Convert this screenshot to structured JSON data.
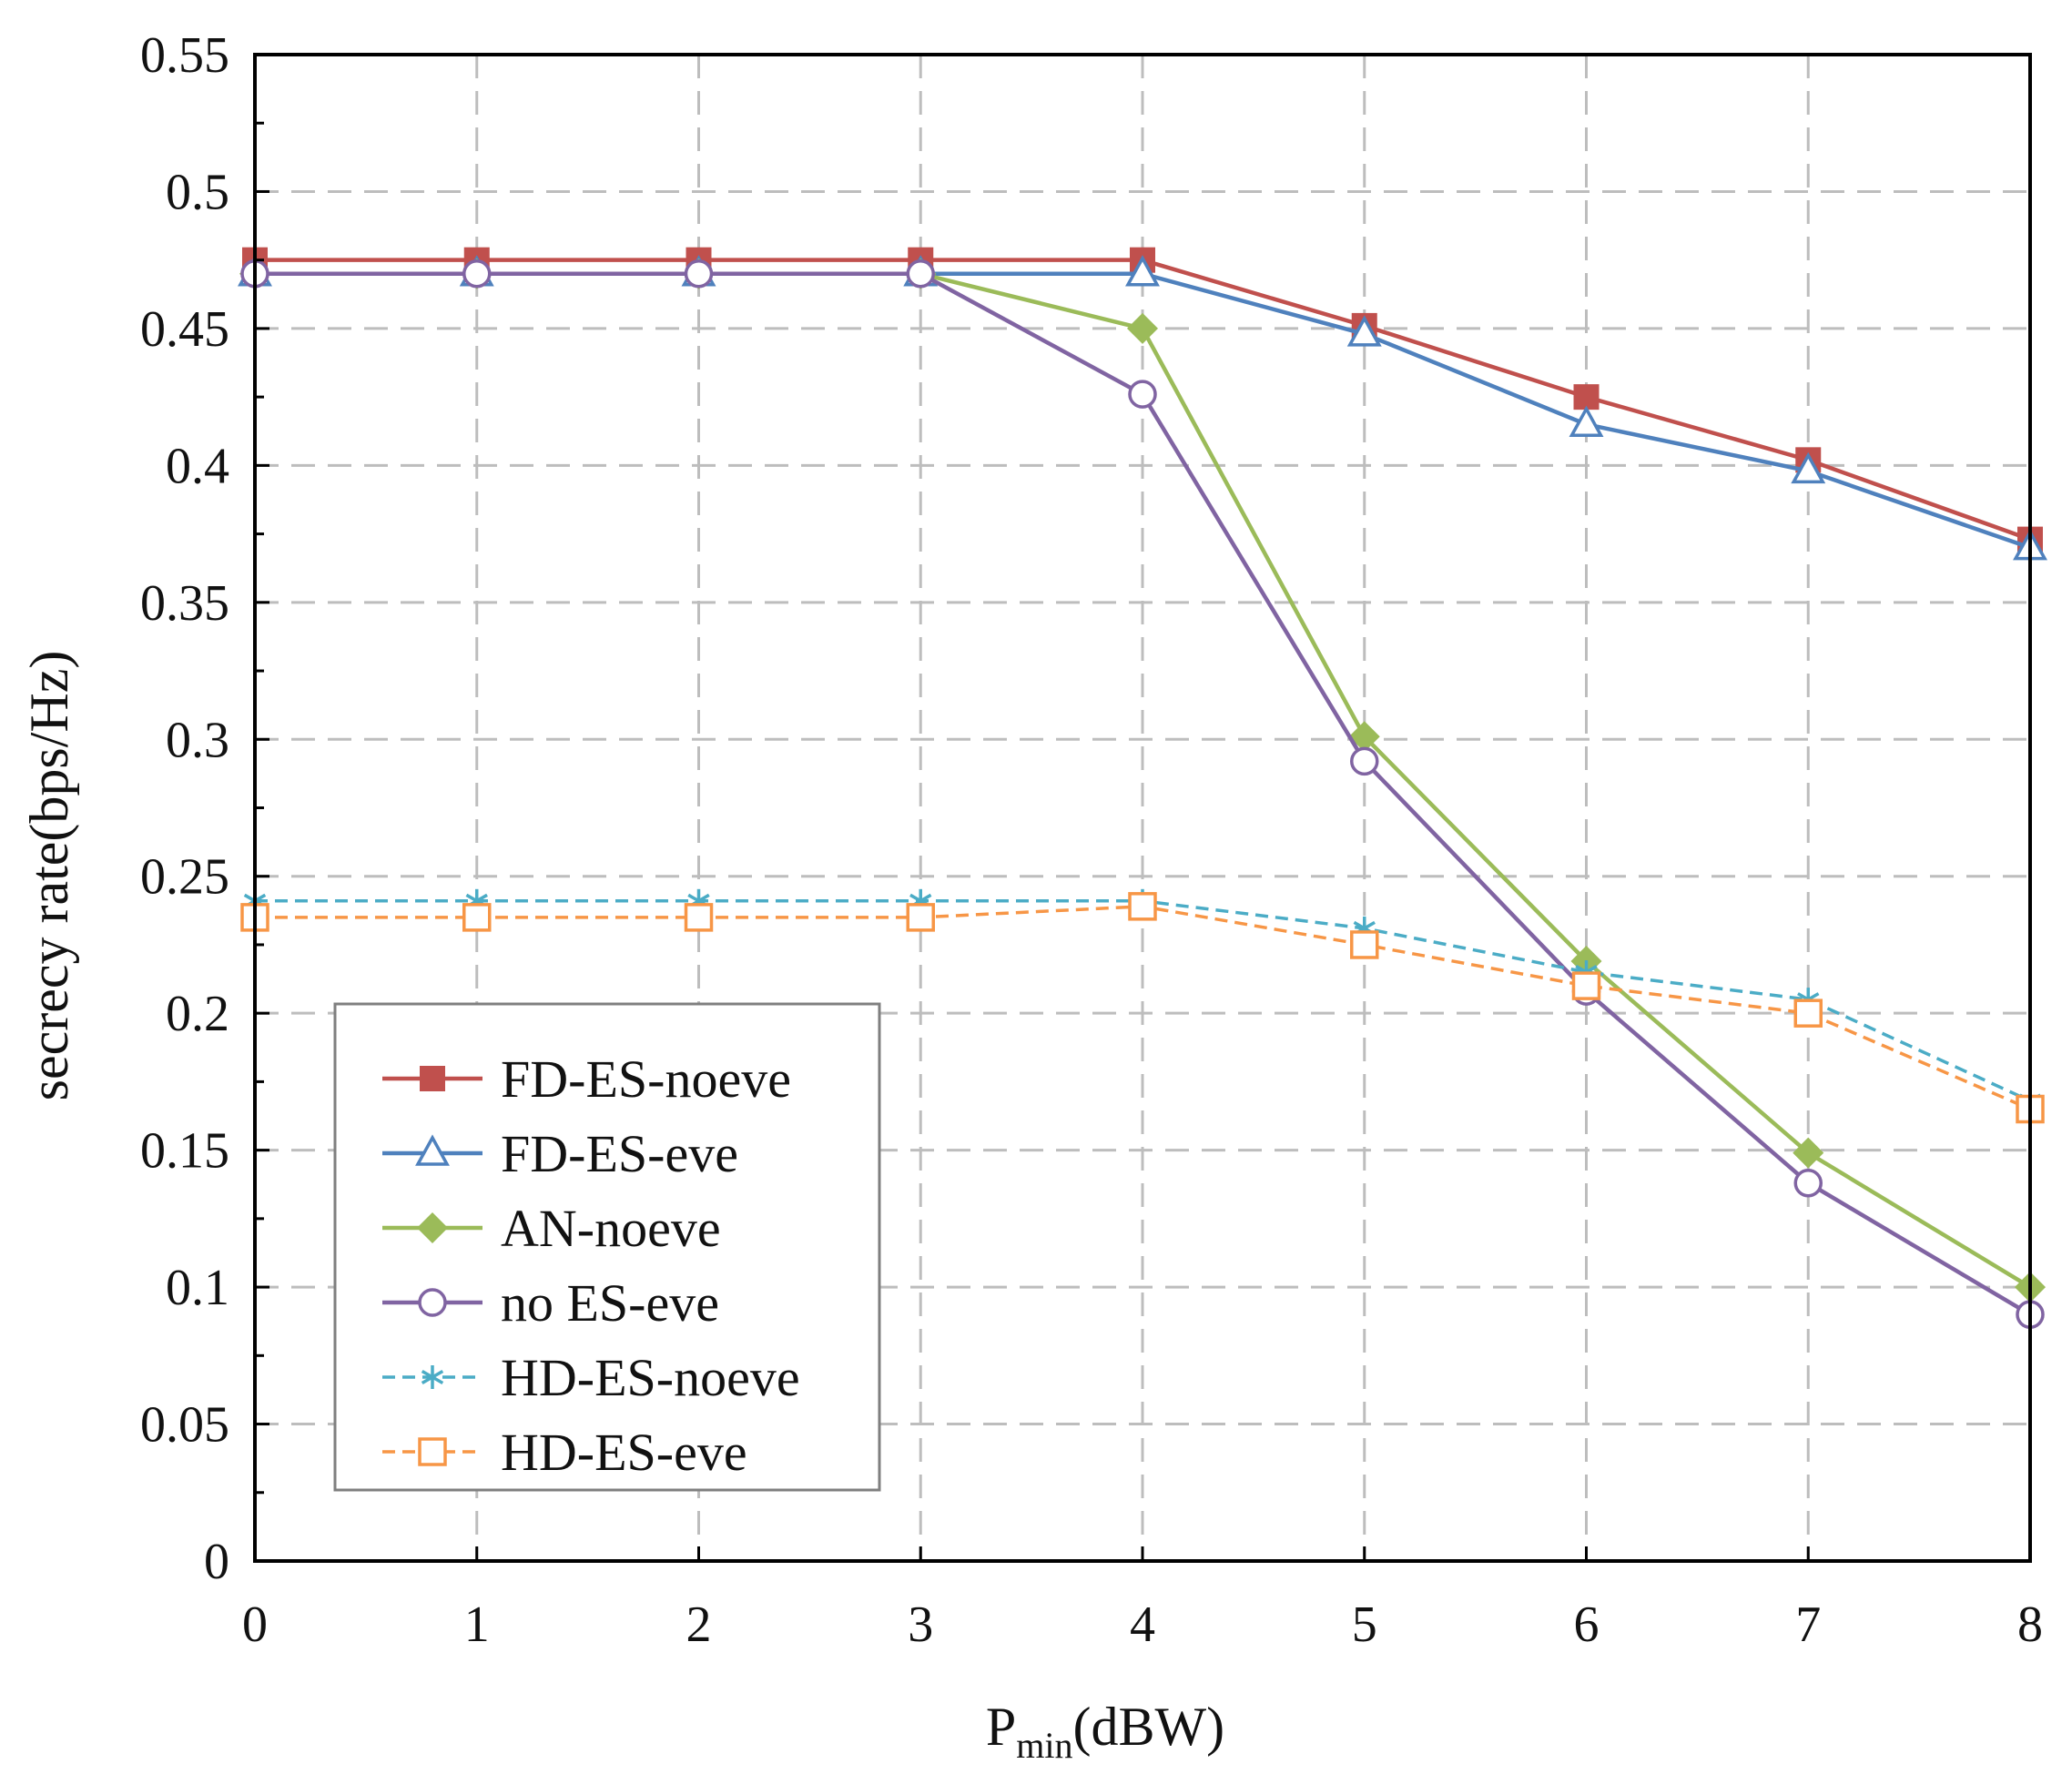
{
  "chart_data": {
    "type": "line",
    "title": "",
    "xlabel_main": "P",
    "xlabel_sub": "min",
    "xlabel_unit": "(dBW)",
    "ylabel": "secrecy rate(bps/Hz)",
    "x": [
      0,
      1,
      2,
      3,
      4,
      5,
      6,
      7,
      8
    ],
    "xlim": [
      0,
      8
    ],
    "ylim": [
      0,
      0.55
    ],
    "x_ticks": [
      "0",
      "1",
      "2",
      "3",
      "4",
      "5",
      "6",
      "7",
      "8"
    ],
    "y_ticks": [
      "0",
      "0.05",
      "0.1",
      "0.15",
      "0.2",
      "0.25",
      "0.3",
      "0.35",
      "0.4",
      "0.45",
      "0.5",
      "0.55"
    ],
    "grid": true,
    "legend_position": "bottom-left",
    "series": [
      {
        "name": "FD-ES-noeve",
        "color": "#c0504d",
        "marker": "filled-square",
        "dash": "solid",
        "values": [
          0.475,
          0.475,
          0.475,
          0.475,
          0.475,
          0.451,
          0.425,
          0.402,
          0.373
        ]
      },
      {
        "name": "FD-ES-eve",
        "color": "#4f81bd",
        "marker": "open-triangle",
        "dash": "solid",
        "values": [
          0.47,
          0.47,
          0.47,
          0.47,
          0.47,
          0.448,
          0.415,
          0.398,
          0.37
        ]
      },
      {
        "name": "AN-noeve",
        "color": "#9bbb59",
        "marker": "filled-diamond",
        "dash": "solid",
        "values": [
          0.47,
          0.47,
          0.47,
          0.47,
          0.45,
          0.301,
          0.219,
          0.149,
          0.1
        ]
      },
      {
        "name": "no ES-eve",
        "color": "#8064a2",
        "marker": "open-circle",
        "dash": "solid",
        "values": [
          0.47,
          0.47,
          0.47,
          0.47,
          0.426,
          0.292,
          0.208,
          0.138,
          0.09
        ]
      },
      {
        "name": "HD-ES-noeve",
        "color": "#4bacc6",
        "marker": "asterisk",
        "dash": "dashed",
        "values": [
          0.241,
          0.241,
          0.241,
          0.241,
          0.241,
          0.231,
          0.215,
          0.205,
          0.168
        ]
      },
      {
        "name": "HD-ES-eve",
        "color": "#f79646",
        "marker": "open-square",
        "dash": "dashed",
        "values": [
          0.235,
          0.235,
          0.235,
          0.235,
          0.239,
          0.225,
          0.21,
          0.2,
          0.165
        ]
      }
    ]
  }
}
